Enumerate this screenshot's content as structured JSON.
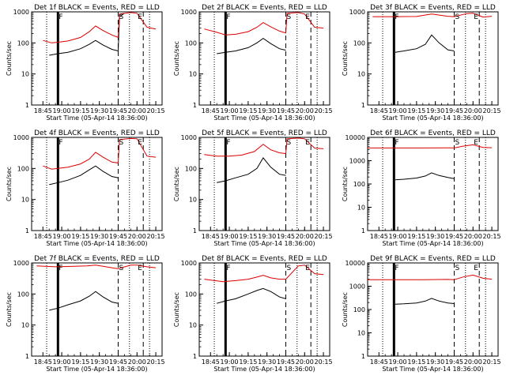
{
  "figure": {
    "x_tick_labels": [
      "18:45",
      "19:00",
      "19:15",
      "19:30",
      "19:45",
      "20:00",
      "20:15"
    ],
    "y_axis_label": "Counts/sec",
    "x_axis_label": "Start Time (05-Apr-14 18:36:00)",
    "marker_labels": [
      "F",
      "S",
      "E"
    ],
    "colors": {
      "events": "#000000",
      "lld": "#dd0000",
      "axes": "#000000",
      "background": "#ffffff"
    }
  },
  "chart_data": [
    {
      "type": "line",
      "title": "Det 1f BLACK = Events, RED = LLD",
      "xlabel": "Start Time (05-Apr-14 18:36:00)",
      "ylabel": "Counts/sec",
      "xlim": [
        "18:36",
        "20:20"
      ],
      "ylim": [
        1,
        1000
      ],
      "yscale": "log",
      "series": [
        {
          "name": "Events",
          "color": "#000000",
          "x": [
            "18:50",
            "18:57",
            "19:05",
            "19:15",
            "19:22",
            "19:27",
            "19:33",
            "19:40",
            "19:45",
            "19:46",
            "19:50"
          ],
          "values": [
            40,
            45,
            50,
            65,
            90,
            120,
            85,
            62,
            55,
            700,
            900
          ]
        },
        {
          "name": "LLD",
          "color": "#dd0000",
          "x": [
            "18:45",
            "18:52",
            "18:57",
            "19:05",
            "19:15",
            "19:22",
            "19:27",
            "19:33",
            "19:40",
            "19:45",
            "19:46",
            "19:55",
            "20:00",
            "20:08",
            "20:15"
          ],
          "values": [
            120,
            100,
            105,
            115,
            150,
            230,
            350,
            250,
            180,
            150,
            850,
            950,
            900,
            320,
            280
          ]
        }
      ]
    },
    {
      "type": "line",
      "title": "Det 2f BLACK = Events, RED = LLD",
      "xlabel": "Start Time (05-Apr-14 18:36:00)",
      "ylabel": "Counts/sec",
      "xlim": [
        "18:36",
        "20:20"
      ],
      "ylim": [
        1,
        1000
      ],
      "yscale": "log",
      "series": [
        {
          "name": "Events",
          "color": "#000000",
          "x": [
            "18:50",
            "18:57",
            "19:05",
            "19:15",
            "19:22",
            "19:27",
            "19:33",
            "19:40",
            "19:45"
          ],
          "values": [
            45,
            50,
            55,
            70,
            100,
            140,
            95,
            65,
            58
          ]
        },
        {
          "name": "LLD",
          "color": "#dd0000",
          "x": [
            "18:40",
            "18:50",
            "18:57",
            "19:05",
            "19:15",
            "19:22",
            "19:27",
            "19:33",
            "19:40",
            "19:45",
            "19:46",
            "19:55",
            "20:00",
            "20:08",
            "20:15"
          ],
          "values": [
            280,
            220,
            180,
            190,
            230,
            320,
            450,
            330,
            240,
            210,
            900,
            950,
            850,
            320,
            300
          ]
        }
      ]
    },
    {
      "type": "line",
      "title": "Det 3f BLACK = Events, RED = LLD",
      "xlabel": "Start Time (05-Apr-14 18:36:00)",
      "ylabel": "Counts/sec",
      "xlim": [
        "18:36",
        "20:20"
      ],
      "ylim": [
        1,
        1000
      ],
      "yscale": "log",
      "series": [
        {
          "name": "Events",
          "color": "#000000",
          "x": [
            "18:58",
            "19:05",
            "19:15",
            "19:22",
            "19:27",
            "19:33",
            "19:40",
            "19:45"
          ],
          "values": [
            50,
            55,
            65,
            90,
            180,
            100,
            60,
            55
          ]
        },
        {
          "name": "LLD",
          "color": "#dd0000",
          "x": [
            "18:40",
            "19:00",
            "19:15",
            "19:27",
            "19:40",
            "19:45",
            "19:55",
            "20:00",
            "20:08",
            "20:15"
          ],
          "values": [
            700,
            700,
            710,
            850,
            720,
            700,
            880,
            900,
            680,
            720
          ]
        }
      ]
    },
    {
      "type": "line",
      "title": "Det 4f BLACK = Events, RED = LLD",
      "xlabel": "Start Time (05-Apr-14 18:36:00)",
      "ylabel": "Counts/sec",
      "xlim": [
        "18:36",
        "20:20"
      ],
      "ylim": [
        1,
        1000
      ],
      "yscale": "log",
      "series": [
        {
          "name": "Events",
          "color": "#000000",
          "x": [
            "18:50",
            "18:57",
            "19:05",
            "19:15",
            "19:22",
            "19:27",
            "19:33",
            "19:40",
            "19:45"
          ],
          "values": [
            30,
            35,
            42,
            60,
            90,
            120,
            80,
            55,
            50
          ]
        },
        {
          "name": "LLD",
          "color": "#dd0000",
          "x": [
            "18:45",
            "18:52",
            "18:57",
            "19:05",
            "19:15",
            "19:22",
            "19:27",
            "19:33",
            "19:40",
            "19:45",
            "19:46",
            "19:55",
            "20:00",
            "20:08",
            "20:15"
          ],
          "values": [
            120,
            95,
            100,
            110,
            140,
            200,
            330,
            230,
            160,
            150,
            850,
            920,
            900,
            250,
            230
          ]
        }
      ]
    },
    {
      "type": "line",
      "title": "Det 5f BLACK = Events, RED = LLD",
      "xlabel": "Start Time (05-Apr-14 18:36:00)",
      "ylabel": "Counts/sec",
      "xlim": [
        "18:36",
        "20:20"
      ],
      "ylim": [
        1,
        1000
      ],
      "yscale": "log",
      "series": [
        {
          "name": "Events",
          "color": "#000000",
          "x": [
            "18:50",
            "18:57",
            "19:05",
            "19:15",
            "19:22",
            "19:27",
            "19:33",
            "19:40",
            "19:45"
          ],
          "values": [
            35,
            40,
            50,
            65,
            100,
            220,
            110,
            65,
            60
          ]
        },
        {
          "name": "LLD",
          "color": "#dd0000",
          "x": [
            "18:40",
            "18:50",
            "19:00",
            "19:10",
            "19:20",
            "19:27",
            "19:33",
            "19:40",
            "19:45",
            "19:46",
            "19:55",
            "20:00",
            "20:08",
            "20:15"
          ],
          "values": [
            280,
            250,
            250,
            270,
            350,
            600,
            400,
            320,
            300,
            900,
            950,
            900,
            450,
            430
          ]
        }
      ]
    },
    {
      "type": "line",
      "title": "Det 6f BLACK = Events, RED = LLD",
      "xlabel": "Start Time (05-Apr-14 18:36:00)",
      "ylabel": "Counts/sec",
      "xlim": [
        "18:36",
        "20:20"
      ],
      "ylim": [
        1,
        10000
      ],
      "yscale": "log",
      "series": [
        {
          "name": "Events",
          "color": "#000000",
          "x": [
            "18:58",
            "19:05",
            "19:15",
            "19:22",
            "19:27",
            "19:33",
            "19:40",
            "19:45"
          ],
          "values": [
            150,
            160,
            180,
            220,
            300,
            230,
            190,
            170
          ]
        },
        {
          "name": "LLD",
          "color": "#dd0000",
          "x": [
            "18:36",
            "19:00",
            "19:20",
            "19:40",
            "19:45",
            "19:52",
            "20:00",
            "20:08",
            "20:15"
          ],
          "values": [
            3500,
            3500,
            3500,
            3550,
            3500,
            4200,
            4800,
            3700,
            3600
          ]
        }
      ]
    },
    {
      "type": "line",
      "title": "Det 7f BLACK = Events, RED = LLD",
      "xlabel": "Start Time (05-Apr-14 18:36:00)",
      "ylabel": "Counts/sec",
      "xlim": [
        "18:36",
        "20:20"
      ],
      "ylim": [
        1,
        1000
      ],
      "yscale": "log",
      "series": [
        {
          "name": "Events",
          "color": "#000000",
          "x": [
            "18:50",
            "18:57",
            "19:05",
            "19:15",
            "19:22",
            "19:27",
            "19:33",
            "19:40",
            "19:45"
          ],
          "values": [
            30,
            35,
            45,
            60,
            85,
            120,
            80,
            55,
            50
          ]
        },
        {
          "name": "LLD",
          "color": "#dd0000",
          "x": [
            "18:40",
            "18:55",
            "19:10",
            "19:20",
            "19:27",
            "19:33",
            "19:40",
            "19:45",
            "19:55",
            "20:00",
            "20:08",
            "20:15"
          ],
          "values": [
            800,
            750,
            780,
            800,
            850,
            780,
            700,
            650,
            850,
            850,
            750,
            700
          ]
        }
      ]
    },
    {
      "type": "line",
      "title": "Det 8f BLACK = Events, RED = LLD",
      "xlabel": "Start Time (05-Apr-14 18:36:00)",
      "ylabel": "Counts/sec",
      "xlim": [
        "18:36",
        "20:20"
      ],
      "ylim": [
        1,
        1000
      ],
      "yscale": "log",
      "series": [
        {
          "name": "Events",
          "color": "#000000",
          "x": [
            "18:50",
            "18:57",
            "19:05",
            "19:15",
            "19:22",
            "19:27",
            "19:33",
            "19:40",
            "19:45"
          ],
          "values": [
            50,
            60,
            70,
            100,
            130,
            150,
            120,
            80,
            70
          ]
        },
        {
          "name": "LLD",
          "color": "#dd0000",
          "x": [
            "18:40",
            "18:55",
            "19:05",
            "19:15",
            "19:22",
            "19:27",
            "19:33",
            "19:40",
            "19:45",
            "19:55",
            "20:00",
            "20:08",
            "20:15"
          ],
          "values": [
            300,
            250,
            270,
            300,
            350,
            400,
            330,
            300,
            300,
            800,
            850,
            450,
            420
          ]
        }
      ]
    },
    {
      "type": "line",
      "title": "Det 9f BLACK = Events, RED = LLD",
      "xlabel": "Start Time (05-Apr-14 18:36:00)",
      "ylabel": "Counts/sec",
      "xlim": [
        "18:36",
        "20:20"
      ],
      "ylim": [
        1,
        10000
      ],
      "yscale": "log",
      "series": [
        {
          "name": "Events",
          "color": "#000000",
          "x": [
            "18:58",
            "19:05",
            "19:15",
            "19:22",
            "19:27",
            "19:33",
            "19:40",
            "19:45"
          ],
          "values": [
            170,
            175,
            190,
            230,
            300,
            230,
            190,
            180
          ]
        },
        {
          "name": "LLD",
          "color": "#dd0000",
          "x": [
            "18:36",
            "19:00",
            "19:20",
            "19:40",
            "19:45",
            "19:52",
            "20:00",
            "20:08",
            "20:15"
          ],
          "values": [
            1900,
            1900,
            1900,
            1950,
            1900,
            2500,
            3000,
            2200,
            2000
          ]
        }
      ]
    }
  ]
}
